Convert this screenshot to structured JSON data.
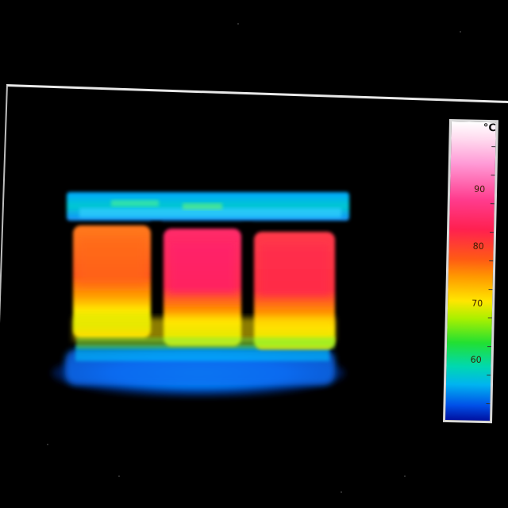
{
  "thermal_image": {
    "subject": "three-coil-transformer-heat-signature"
  },
  "temperature_scale": {
    "unit": "°C",
    "labels": [
      "90",
      "80",
      "70",
      "60"
    ],
    "colors": {
      "hot": "#ff2a6a",
      "warm": "#ff8a00",
      "mid": "#ffe600",
      "cool": "#00c8ff",
      "cold": "#0018b0"
    }
  }
}
